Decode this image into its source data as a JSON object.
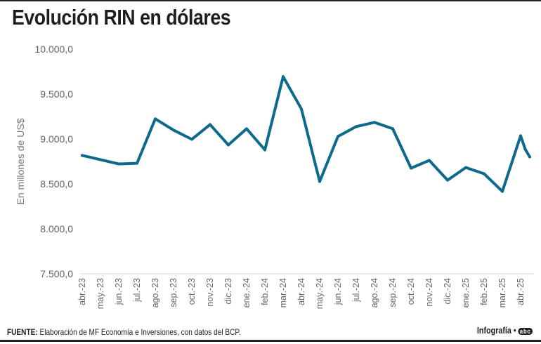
{
  "title": "Evolución RIN en dólares",
  "source_label": "FUENTE:",
  "source_text": "Elaboración de MF Economía e Inversiones, con datos del BCP.",
  "credit": "Infografía •",
  "logo": "abc",
  "chart_data": {
    "type": "line",
    "title": "Evolución RIN en dólares",
    "ylabel": "En millones de US$",
    "xlabel": "",
    "ylim": [
      7500,
      10000
    ],
    "yticks": [
      7500,
      8000,
      8500,
      9000,
      9500,
      10000
    ],
    "ytick_labels": [
      "7.500,0",
      "8.000,0",
      "8.500,0",
      "9.000,0",
      "9.500,0",
      "10.000,0"
    ],
    "grid": false,
    "line_color": "#0e6a8c",
    "categories": [
      "abr.-23",
      "may.-23",
      "jun.-23",
      "jul.-23",
      "ago.-23",
      "sep.-23",
      "oct.-23",
      "nov.-23",
      "dic.-23",
      "ene.-24",
      "feb.-24",
      "mar.-24",
      "abr.-24",
      "may.-24",
      "jun.-24",
      "jul.-24",
      "ago.-24",
      "sep.-24",
      "oct.-24",
      "nov.-24",
      "dic.-24",
      "ene.-25",
      "feb.-25",
      "mar.-25",
      "abr.-25"
    ],
    "x": [
      0,
      1,
      2,
      3,
      4,
      5,
      6,
      7,
      8,
      9,
      10,
      11,
      12,
      13,
      14,
      15,
      16,
      17,
      18,
      19,
      20,
      21,
      22,
      23,
      24,
      24.25,
      24.5
    ],
    "values": [
      8817,
      8770,
      8723,
      8730,
      9224,
      9099,
      8997,
      9161,
      8934,
      9114,
      8879,
      9694,
      9334,
      8527,
      9028,
      9138,
      9185,
      9114,
      8676,
      8762,
      8542,
      8683,
      8613,
      8417,
      9036,
      8887,
      8801
    ]
  }
}
